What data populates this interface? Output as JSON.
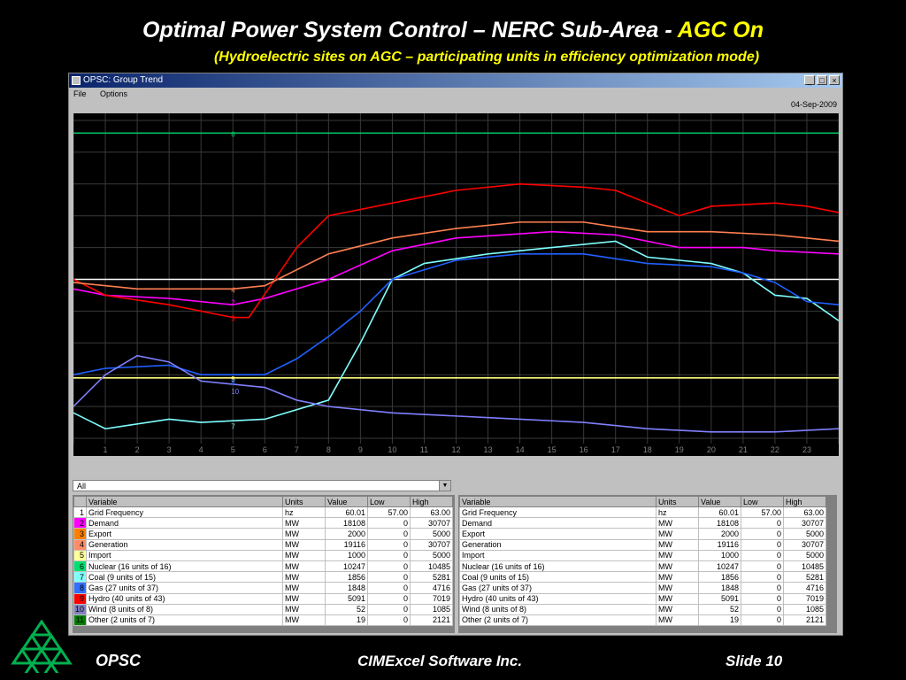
{
  "slide": {
    "title_main": "Optimal Power System Control – NERC Sub-Area - ",
    "title_highlight": "AGC On",
    "subtitle": "(Hydroelectric sites on AGC – participating units in efficiency optimization mode)"
  },
  "window": {
    "title": "OPSC: Group Trend",
    "minimize": "_",
    "maximize": "□",
    "close": "×",
    "menu": [
      "File",
      "Options"
    ],
    "date": "04-Sep-2009"
  },
  "chart_data": {
    "type": "line",
    "x_ticks": [
      "1",
      "2",
      "3",
      "4",
      "5",
      "6",
      "7",
      "8",
      "9",
      "10",
      "11",
      "12",
      "13",
      "14",
      "15",
      "16",
      "17",
      "18",
      "19",
      "20",
      "21",
      "22",
      "23"
    ],
    "xlim": [
      0,
      24
    ],
    "ylim": [
      0,
      1
    ],
    "series": [
      {
        "name": "1",
        "color": "#ffffff",
        "x": [
          0,
          4,
          5,
          7,
          10,
          14,
          18,
          21,
          24
        ],
        "values": [
          0.5,
          0.5,
          0.5,
          0.5,
          0.5,
          0.5,
          0.5,
          0.5,
          0.5
        ]
      },
      {
        "name": "2",
        "color": "#ff00ff",
        "x": [
          0,
          1,
          3,
          5,
          6,
          8,
          10,
          12,
          15,
          17,
          19,
          21,
          22,
          24
        ],
        "values": [
          0.47,
          0.45,
          0.44,
          0.42,
          0.44,
          0.5,
          0.59,
          0.63,
          0.65,
          0.64,
          0.6,
          0.6,
          0.59,
          0.58
        ]
      },
      {
        "name": "3",
        "color": "#ff0000",
        "x": [
          0,
          1,
          3,
          5,
          5.5,
          7,
          8,
          10,
          12,
          14,
          16,
          17,
          18,
          19,
          20,
          22,
          23,
          24
        ],
        "values": [
          0.5,
          0.45,
          0.42,
          0.38,
          0.38,
          0.6,
          0.7,
          0.74,
          0.78,
          0.8,
          0.79,
          0.78,
          0.74,
          0.7,
          0.73,
          0.74,
          0.73,
          0.71
        ]
      },
      {
        "name": "4",
        "color": "#ff7f50",
        "x": [
          0,
          2,
          5,
          6,
          8,
          10,
          12,
          14,
          16,
          18,
          20,
          22,
          24
        ],
        "values": [
          0.49,
          0.47,
          0.47,
          0.48,
          0.58,
          0.63,
          0.66,
          0.68,
          0.68,
          0.65,
          0.65,
          0.64,
          0.62
        ]
      },
      {
        "name": "5",
        "color": "#ffff80",
        "x": [
          0,
          24
        ],
        "values": [
          0.19,
          0.19
        ]
      },
      {
        "name": "6",
        "color": "#00c060",
        "x": [
          0,
          24
        ],
        "values": [
          0.96,
          0.96
        ]
      },
      {
        "name": "7",
        "color": "#80ffff",
        "x": [
          0,
          1,
          3,
          4,
          6,
          8,
          9,
          10,
          11,
          13,
          15,
          17,
          18,
          20,
          21,
          22,
          23,
          24
        ],
        "values": [
          0.08,
          0.03,
          0.06,
          0.05,
          0.06,
          0.12,
          0.3,
          0.5,
          0.55,
          0.58,
          0.6,
          0.62,
          0.57,
          0.55,
          0.52,
          0.45,
          0.44,
          0.37
        ]
      },
      {
        "name": "8",
        "color": "#2060ff",
        "x": [
          0,
          1,
          3,
          4,
          6,
          7,
          8,
          9,
          10,
          12,
          14,
          16,
          18,
          20,
          21,
          22,
          23,
          24
        ],
        "values": [
          0.2,
          0.22,
          0.23,
          0.2,
          0.2,
          0.25,
          0.32,
          0.4,
          0.5,
          0.56,
          0.58,
          0.58,
          0.55,
          0.54,
          0.52,
          0.49,
          0.43,
          0.42
        ]
      },
      {
        "name": "10",
        "color": "#8080ff",
        "x": [
          0,
          1,
          2,
          3,
          4,
          6,
          7,
          8,
          10,
          14,
          16,
          18,
          20,
          22,
          24
        ],
        "values": [
          0.1,
          0.2,
          0.26,
          0.24,
          0.18,
          0.16,
          0.12,
          0.1,
          0.08,
          0.06,
          0.05,
          0.03,
          0.02,
          0.02,
          0.03
        ]
      }
    ],
    "line_labels": [
      {
        "text": "6",
        "x": 5,
        "y": 0.96,
        "color": "#00c060"
      },
      {
        "text": "4",
        "x": 5,
        "y": 0.47,
        "color": "#ff7f50"
      },
      {
        "text": "2",
        "x": 5,
        "y": 0.43,
        "color": "#ff00ff"
      },
      {
        "text": "3",
        "x": 5,
        "y": 0.38,
        "color": "#ff0000"
      },
      {
        "text": "5",
        "x": 5,
        "y": 0.19,
        "color": "#ffff80"
      },
      {
        "text": "8",
        "x": 5,
        "y": 0.18,
        "color": "#2060ff"
      },
      {
        "text": "10",
        "x": 5,
        "y": 0.15,
        "color": "#8080ff"
      },
      {
        "text": "7",
        "x": 5,
        "y": 0.04,
        "color": "#80ffff"
      }
    ],
    "grid": true
  },
  "filter": {
    "value": "All"
  },
  "table": {
    "headers": [
      "Variable",
      "Units",
      "Value",
      "Low",
      "High"
    ],
    "rows": [
      {
        "idx": "1",
        "color": "#ffffff",
        "variable": "Grid Frequency",
        "units": "hz",
        "value": "60.01",
        "low": "57.00",
        "high": "63.00"
      },
      {
        "idx": "2",
        "color": "#ff00ff",
        "variable": "Demand",
        "units": "MW",
        "value": "18108",
        "low": "0",
        "high": "30707"
      },
      {
        "idx": "3",
        "color": "#ff8000",
        "variable": "Export",
        "units": "MW",
        "value": "2000",
        "low": "0",
        "high": "5000"
      },
      {
        "idx": "4",
        "color": "#ff8c69",
        "variable": "Generation",
        "units": "MW",
        "value": "19116",
        "low": "0",
        "high": "30707"
      },
      {
        "idx": "5",
        "color": "#ffff99",
        "variable": "Import",
        "units": "MW",
        "value": "1000",
        "low": "0",
        "high": "5000"
      },
      {
        "idx": "6",
        "color": "#00e070",
        "variable": "Nuclear  (16 units of 16)",
        "units": "MW",
        "value": "10247",
        "low": "0",
        "high": "10485"
      },
      {
        "idx": "7",
        "color": "#80ffff",
        "variable": "Coal  (9 units of 15)",
        "units": "MW",
        "value": "1856",
        "low": "0",
        "high": "5281"
      },
      {
        "idx": "8",
        "color": "#3070ff",
        "variable": "Gas  (27 units of 37)",
        "units": "MW",
        "value": "1848",
        "low": "0",
        "high": "4716"
      },
      {
        "idx": "9",
        "color": "#ff0000",
        "variable": "Hydro  (40 units of 43)",
        "units": "MW",
        "value": "5091",
        "low": "0",
        "high": "7019"
      },
      {
        "idx": "10",
        "color": "#8080c0",
        "variable": "Wind  (8 units of 8)",
        "units": "MW",
        "value": "52",
        "low": "0",
        "high": "1085"
      },
      {
        "idx": "11",
        "color": "#008000",
        "variable": "Other  (2 units of 7)",
        "units": "MW",
        "value": "19",
        "low": "0",
        "high": "2121"
      }
    ]
  },
  "footer": {
    "left": "OPSC",
    "center": "CIMExcel Software Inc.",
    "right": "Slide 10"
  },
  "colors": {
    "logo": "#00b050"
  }
}
